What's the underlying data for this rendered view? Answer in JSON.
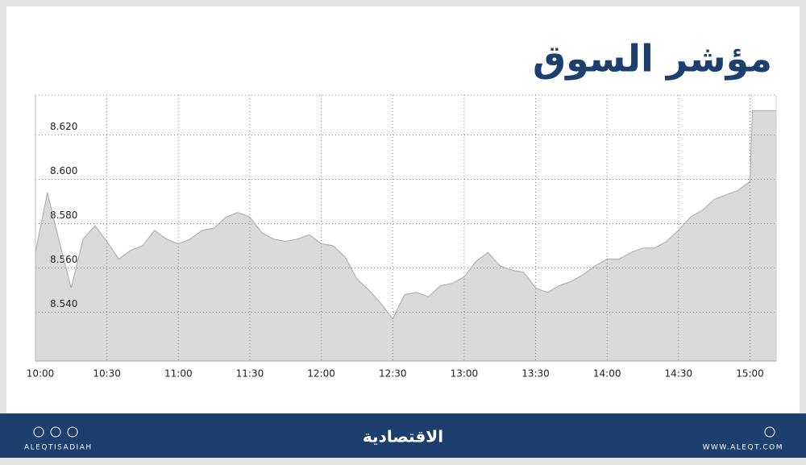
{
  "chart_data": {
    "type": "area",
    "title": "مؤشر السوق",
    "x": [
      "10:00",
      "10:05",
      "10:10",
      "10:15",
      "10:20",
      "10:25",
      "10:30",
      "10:35",
      "10:40",
      "10:45",
      "10:50",
      "10:55",
      "11:00",
      "11:05",
      "11:10",
      "11:15",
      "11:20",
      "11:25",
      "11:30",
      "11:35",
      "11:40",
      "11:45",
      "11:50",
      "11:55",
      "12:00",
      "12:05",
      "12:10",
      "12:15",
      "12:20",
      "12:25",
      "12:30",
      "12:35",
      "12:40",
      "12:45",
      "12:50",
      "12:55",
      "13:00",
      "13:05",
      "13:10",
      "13:15",
      "13:20",
      "13:25",
      "13:30",
      "13:35",
      "13:40",
      "13:45",
      "13:50",
      "13:55",
      "14:00",
      "14:05",
      "14:10",
      "14:15",
      "14:20",
      "14:25",
      "14:30",
      "14:35",
      "14:40",
      "14:45",
      "14:50",
      "14:55",
      "15:00",
      "15:01",
      "15:11"
    ],
    "values": [
      8.567,
      8.594,
      8.572,
      8.551,
      8.573,
      8.579,
      8.572,
      8.564,
      8.568,
      8.57,
      8.577,
      8.573,
      8.571,
      8.573,
      8.577,
      8.578,
      8.583,
      8.585,
      8.583,
      8.576,
      8.573,
      8.572,
      8.573,
      8.575,
      8.571,
      8.57,
      8.565,
      8.555,
      8.55,
      8.544,
      8.537,
      8.548,
      8.549,
      8.547,
      8.552,
      8.553,
      8.556,
      8.563,
      8.567,
      8.561,
      8.559,
      8.558,
      8.551,
      8.549,
      8.552,
      8.554,
      8.557,
      8.561,
      8.564,
      8.564,
      8.567,
      8.569,
      8.569,
      8.572,
      8.577,
      8.583,
      8.586,
      8.591,
      8.593,
      8.595,
      8.599,
      8.631,
      8.631
    ],
    "color": "#dcdad9",
    "xlim": [
      "10:00",
      "15:11"
    ],
    "xticks": [
      "10:00",
      "10:30",
      "11:00",
      "11:30",
      "12:00",
      "12:30",
      "13:00",
      "13:30",
      "14:00",
      "14:30",
      "15:00"
    ],
    "ylim": [
      8.518,
      8.638
    ],
    "yticks": [
      {
        "value": 8.54,
        "label": "8.540"
      },
      {
        "value": 8.56,
        "label": "8.560"
      },
      {
        "value": 8.58,
        "label": "8.580"
      },
      {
        "value": 8.6,
        "label": "8.600"
      },
      {
        "value": 8.62,
        "label": "8.620"
      }
    ],
    "grid": true
  },
  "footer": {
    "left": "ALEQTISADIAH",
    "logo": "الاقتصادية",
    "right": "WWW.ALEQT.COM"
  }
}
